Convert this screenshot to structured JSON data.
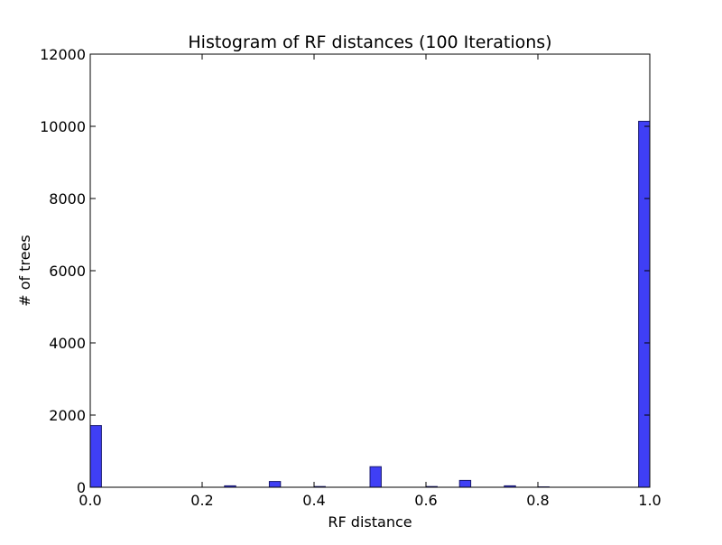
{
  "chart_data": {
    "type": "bar",
    "title": "Histogram of RF distances (100 Iterations)",
    "xlabel": "RF distance",
    "ylabel": "# of trees",
    "xlim": [
      0.0,
      1.0
    ],
    "ylim": [
      0,
      12000
    ],
    "x_ticks": [
      "0.0",
      "0.2",
      "0.4",
      "0.6",
      "0.8",
      "1.0"
    ],
    "y_ticks": [
      "0",
      "2000",
      "4000",
      "6000",
      "8000",
      "10000",
      "12000"
    ],
    "bin_width": 0.02,
    "bins": [
      {
        "x": 0.0,
        "value": 1710
      },
      {
        "x": 0.24,
        "value": 40
      },
      {
        "x": 0.32,
        "value": 160
      },
      {
        "x": 0.4,
        "value": 20
      },
      {
        "x": 0.5,
        "value": 570
      },
      {
        "x": 0.6,
        "value": 20
      },
      {
        "x": 0.66,
        "value": 190
      },
      {
        "x": 0.74,
        "value": 40
      },
      {
        "x": 0.8,
        "value": 10
      },
      {
        "x": 0.98,
        "value": 10140
      }
    ],
    "bar_color": "#3b3bf5",
    "bar_edge_color": "#1a1a6e",
    "grid": false
  }
}
